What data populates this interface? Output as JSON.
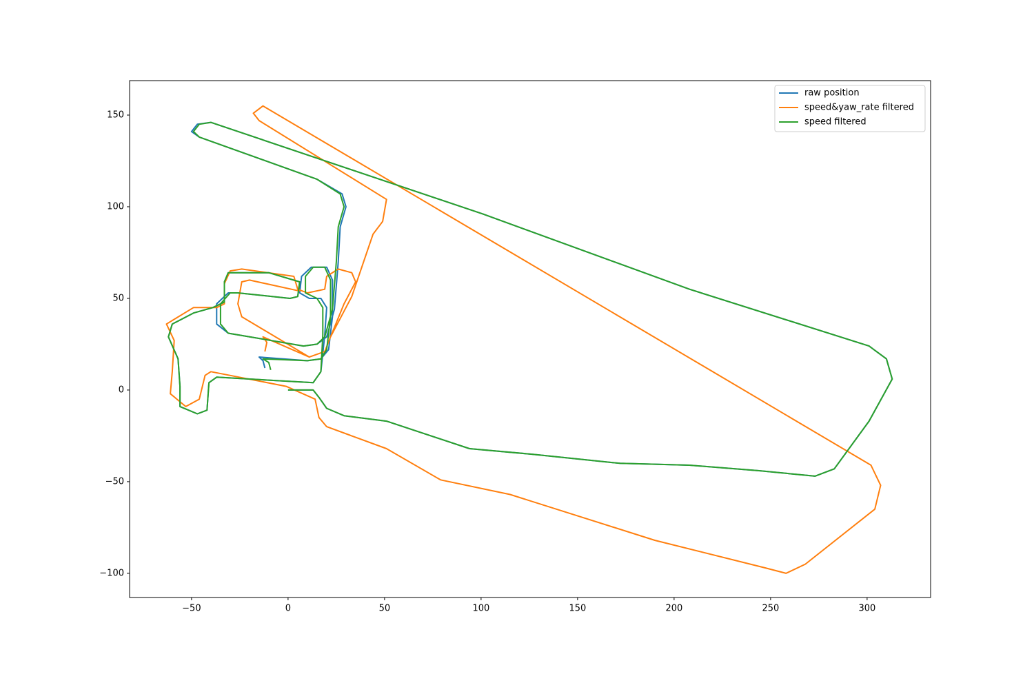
{
  "chart_data": {
    "type": "line",
    "xlim": [
      -82.1,
      332.9
    ],
    "ylim": [
      -113.2,
      168.8
    ],
    "xticks": [
      {
        "value": -50,
        "label": "−50"
      },
      0,
      50,
      100,
      150,
      200,
      250,
      300
    ],
    "yticks": [
      {
        "value": -100,
        "label": "−100"
      },
      {
        "value": -50,
        "label": "−50"
      },
      0,
      50,
      100,
      150
    ],
    "grid": false,
    "legend": "upper right",
    "series": [
      {
        "name": "raw position",
        "color": "#1f77b4",
        "x": [
          0,
          13,
          16,
          20,
          29,
          51,
          94,
          126,
          172,
          208,
          244,
          273,
          283,
          301,
          313,
          310,
          301,
          208,
          101,
          -40,
          -47,
          -50,
          -46,
          15,
          28,
          30,
          27,
          26,
          24,
          20,
          15,
          8,
          -31,
          -37,
          -37,
          -31,
          -26,
          1,
          5,
          6,
          -10,
          -31,
          -33,
          -33,
          -39,
          -49,
          -60,
          -62,
          -57,
          -56,
          -56,
          -47,
          -42,
          -41,
          -37,
          13,
          17,
          19,
          20,
          17,
          11,
          6,
          7,
          12,
          20,
          23,
          23,
          21,
          17,
          10,
          -15,
          -13,
          -12
        ],
        "values": [
          0,
          0,
          -4,
          -10,
          -14,
          -17,
          -32,
          -35,
          -40,
          -41,
          -44,
          -47,
          -43,
          -17,
          6,
          17,
          24,
          55,
          96,
          146,
          145,
          141,
          138,
          115,
          107,
          100,
          89,
          70,
          44,
          29,
          25,
          24,
          31,
          36,
          47,
          53,
          53,
          50,
          51,
          59,
          64,
          64,
          59,
          48,
          45,
          42,
          36,
          29,
          17,
          2,
          -9,
          -13,
          -11,
          4,
          7,
          4,
          10,
          30,
          45,
          50,
          50,
          53,
          62,
          67,
          67,
          60,
          40,
          22,
          17,
          16,
          18,
          16,
          12
        ]
      },
      {
        "name": "speed&yaw_rate filtered",
        "color": "#ff7f0e",
        "x": [
          -12,
          -11,
          -13,
          11,
          19,
          22,
          29,
          35,
          33,
          26,
          20,
          19,
          10,
          5,
          3,
          -24,
          -30,
          -33,
          -33,
          -37,
          -49,
          -63,
          -59,
          -60,
          -61,
          -53,
          -46,
          -43,
          -40,
          -1,
          14,
          16,
          20,
          51,
          79,
          115,
          190,
          247,
          258,
          268,
          304,
          307,
          302,
          -13,
          -18,
          -15,
          51,
          49,
          44,
          33,
          22,
          19,
          11,
          -24,
          -26,
          -24,
          -20,
          6
        ],
        "values": [
          21,
          26,
          29,
          18,
          21,
          29,
          47,
          59,
          64,
          66,
          62,
          55,
          53,
          55,
          62,
          66,
          65,
          58,
          47,
          45,
          45,
          36,
          27,
          10,
          -2,
          -9,
          -5,
          8,
          10,
          2,
          -5,
          -15,
          -20,
          -32,
          -49,
          -57,
          -82,
          -97,
          -100,
          -95,
          -65,
          -52,
          -41,
          155,
          151,
          147,
          104,
          92,
          85,
          51,
          29,
          21,
          18,
          40,
          47,
          59,
          60,
          54
        ]
      },
      {
        "name": "speed filtered",
        "color": "#2ca02c",
        "x": [
          0,
          13,
          16,
          20,
          29,
          51,
          94,
          126,
          172,
          208,
          244,
          273,
          283,
          301,
          313,
          310,
          301,
          208,
          101,
          -40,
          -46,
          -49,
          -46,
          15,
          27,
          29,
          26,
          25,
          23,
          19,
          15,
          8,
          -31,
          -35,
          -35,
          -30,
          -26,
          1,
          5,
          6,
          -10,
          -31,
          -33,
          -33,
          -39,
          -49,
          -60,
          -62,
          -57,
          -56,
          -56,
          -47,
          -42,
          -41,
          -37,
          13,
          17,
          18,
          18,
          15,
          9,
          9,
          13,
          19,
          22,
          22,
          20,
          17,
          10,
          -13,
          -10,
          -9
        ],
        "values": [
          0,
          0,
          -4,
          -10,
          -14,
          -17,
          -32,
          -35,
          -40,
          -41,
          -44,
          -47,
          -43,
          -17,
          6,
          17,
          24,
          55,
          96,
          146,
          145,
          141,
          138,
          115,
          107,
          100,
          89,
          70,
          44,
          29,
          25,
          24,
          31,
          36,
          47,
          53,
          53,
          50,
          51,
          59,
          64,
          64,
          59,
          48,
          45,
          42,
          36,
          29,
          17,
          2,
          -9,
          -13,
          -11,
          4,
          7,
          4,
          10,
          30,
          45,
          50,
          53,
          62,
          67,
          67,
          60,
          40,
          22,
          17,
          16,
          17,
          15,
          11
        ]
      }
    ]
  }
}
